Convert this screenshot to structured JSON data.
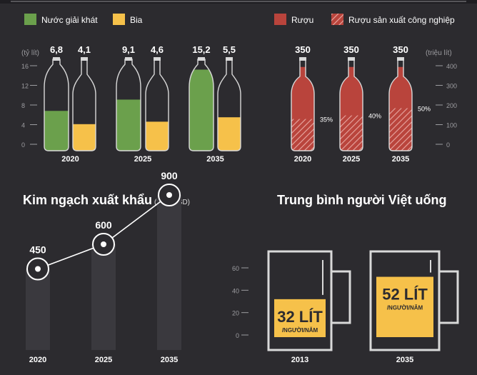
{
  "legend_left": [
    {
      "label": "Nước giải khát",
      "color": "#6ba04c"
    },
    {
      "label": "Bia",
      "color": "#f6c14a"
    }
  ],
  "legend_right": [
    {
      "label": "Rượu",
      "color": "#b9443c"
    },
    {
      "label": "Rượu sản xuất công nghiệp",
      "color": "#b9443c"
    }
  ],
  "colors": {
    "background": "#2c2b2f",
    "soft_drink": "#6ba04c",
    "beer": "#f6c14a",
    "wine": "#b9443c",
    "outline": "#d9d9d9",
    "muted": "#9c9ca0"
  },
  "icons": [
    "bottle-icon",
    "wine-bottle-icon",
    "beer-mug-icon",
    "target-circle-icon"
  ],
  "chart_data": [
    {
      "type": "bar",
      "ylabel": "(tỷ lít)",
      "ylim": [
        0,
        16
      ],
      "yticks": [
        0,
        4,
        8,
        12,
        16
      ],
      "categories": [
        "2020",
        "2025",
        "2035"
      ],
      "series": [
        {
          "name": "Nước giải khát",
          "values": [
            6.8,
            9.1,
            15.2
          ],
          "labels": [
            "6,8",
            "9,1",
            "15,2"
          ]
        },
        {
          "name": "Bia",
          "values": [
            4.1,
            4.6,
            5.5
          ],
          "labels": [
            "4,1",
            "4,6",
            "5,5"
          ]
        }
      ]
    },
    {
      "type": "bar",
      "ylabel": "(triệu lít)",
      "ylim": [
        0,
        400
      ],
      "yticks": [
        0,
        100,
        200,
        300,
        400
      ],
      "categories": [
        "2020",
        "2025",
        "2035"
      ],
      "series": [
        {
          "name": "Rượu",
          "values": [
            350,
            350,
            350
          ],
          "labels": [
            "350",
            "350",
            "350"
          ]
        }
      ],
      "industrial_share": {
        "name": "Rượu sản xuất công nghiệp",
        "values": [
          35,
          40,
          50
        ],
        "labels": [
          "35%",
          "40%",
          "50%"
        ]
      }
    },
    {
      "type": "line",
      "title": "Kim ngạch xuất khẩu",
      "unit": "(triệu USD)",
      "categories": [
        "2020",
        "2025",
        "2035"
      ],
      "values": [
        450,
        600,
        900
      ],
      "labels": [
        "450",
        "600",
        "900"
      ],
      "ylim": [
        0,
        1000
      ]
    },
    {
      "type": "bar",
      "title": "Trung bình người Việt uống",
      "ylim": [
        0,
        60
      ],
      "yticks": [
        0,
        20,
        40,
        60
      ],
      "categories": [
        "2013",
        "2035"
      ],
      "values": [
        32,
        52
      ],
      "value_labels": [
        "32 LÍT",
        "52 LÍT"
      ],
      "sublabel": "/NGƯỜI/NĂM"
    }
  ]
}
